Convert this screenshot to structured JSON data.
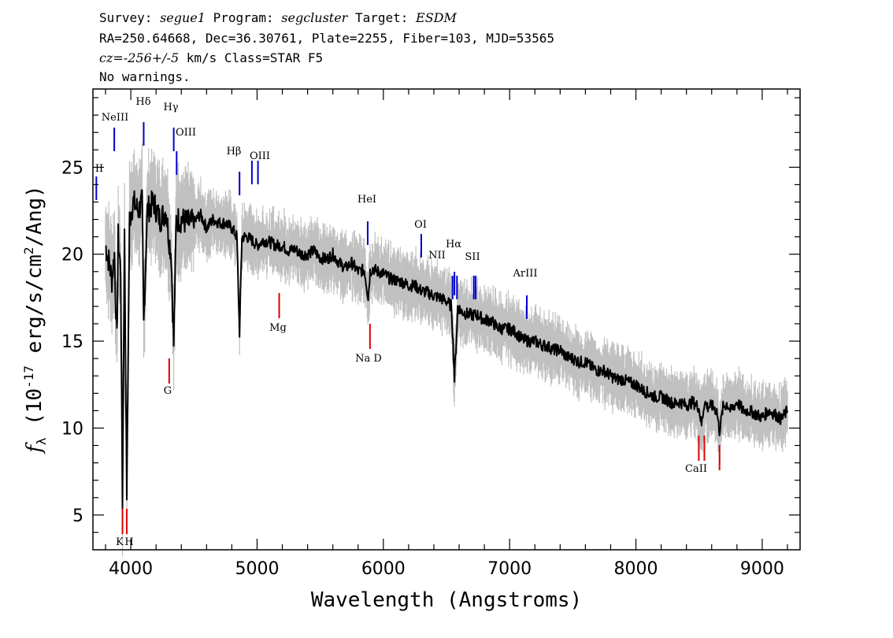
{
  "header": {
    "line1": [
      {
        "t": "Survey: ",
        "i": false
      },
      {
        "t": "segue1",
        "i": true
      },
      {
        "t": " Program: ",
        "i": false
      },
      {
        "t": "segcluster",
        "i": true
      },
      {
        "t": " Target: ",
        "i": false
      },
      {
        "t": "ESDM",
        "i": true
      }
    ],
    "line2": "RA=250.64668, Dec=36.30761, Plate=2255, Fiber=103, MJD=53565",
    "line3": [
      {
        "t": "cz=-256+/-5",
        "i": true
      },
      {
        "t": " km/s Class=STAR F5",
        "i": false
      }
    ],
    "line4": "No warnings."
  },
  "chart_data": {
    "type": "line",
    "xlabel": "Wavelength (Angstroms)",
    "ylabel": "fλ (10⁻¹⁷ erg/s/cm²/Ang)",
    "xlim": [
      3700,
      9300
    ],
    "ylim": [
      3,
      29.5
    ],
    "xticks": [
      4000,
      5000,
      6000,
      7000,
      8000,
      9000
    ],
    "yticks": [
      5,
      10,
      15,
      20,
      25
    ],
    "grid": false,
    "colors": {
      "spectrum": "#000000",
      "noise": "#c0c0c0",
      "emission": "#0000cc",
      "absorption": "#dd0000"
    },
    "series": [
      {
        "name": "flux",
        "x": [
          3800,
          3830,
          3850,
          3870,
          3890,
          3900,
          3920,
          3934,
          3950,
          3968,
          3990,
          4020,
          4060,
          4090,
          4102,
          4130,
          4180,
          4230,
          4280,
          4300,
          4320,
          4340,
          4360,
          4400,
          4450,
          4500,
          4550,
          4600,
          4650,
          4700,
          4750,
          4800,
          4840,
          4861,
          4880,
          4920,
          4960,
          5000,
          5050,
          5100,
          5150,
          5200,
          5250,
          5300,
          5350,
          5400,
          5450,
          5500,
          5550,
          5600,
          5650,
          5700,
          5750,
          5800,
          5850,
          5880,
          5895,
          5920,
          5950,
          6000,
          6050,
          6100,
          6150,
          6200,
          6250,
          6300,
          6350,
          6400,
          6450,
          6500,
          6540,
          6563,
          6590,
          6620,
          6650,
          6700,
          6750,
          6800,
          6850,
          6900,
          6950,
          7000,
          7050,
          7100,
          7150,
          7200,
          7250,
          7300,
          7350,
          7400,
          7450,
          7500,
          7550,
          7600,
          7650,
          7700,
          7750,
          7800,
          7850,
          7900,
          7950,
          8000,
          8050,
          8100,
          8150,
          8200,
          8250,
          8300,
          8350,
          8400,
          8450,
          8498,
          8520,
          8542,
          8570,
          8600,
          8640,
          8662,
          8690,
          8720,
          8750,
          8800,
          8850,
          8900,
          8950,
          9000,
          9050,
          9100,
          9150,
          9200
        ],
        "y": [
          20.5,
          19.5,
          18.5,
          20,
          15,
          21,
          19,
          5.8,
          21,
          6.3,
          22,
          23,
          22.5,
          23,
          16,
          22.5,
          23,
          22,
          22.5,
          21,
          20,
          14.8,
          22,
          22,
          21.8,
          21.8,
          22.3,
          21.5,
          22,
          21.8,
          21.8,
          21.5,
          21,
          15.5,
          21,
          21,
          20.8,
          20.5,
          20.8,
          20.7,
          20.5,
          20.5,
          20.2,
          20.3,
          20,
          20,
          20.2,
          19.8,
          19.7,
          20,
          19.5,
          19.2,
          19.5,
          19,
          19.1,
          17.5,
          19,
          19.2,
          19,
          18.9,
          18.6,
          18.5,
          18.4,
          18.2,
          18.2,
          17.9,
          17.8,
          17.6,
          17.5,
          17.3,
          17,
          12.8,
          17,
          16.7,
          16.6,
          16.5,
          16.5,
          16.2,
          16.2,
          15.8,
          15.7,
          15.7,
          15.5,
          15.1,
          15,
          15,
          14.8,
          14.7,
          14.5,
          14.5,
          14.1,
          14,
          13.8,
          13.8,
          13.5,
          13.3,
          13.3,
          13,
          12.8,
          12.8,
          12.6,
          12.5,
          12.2,
          12,
          11.8,
          11.8,
          11.6,
          11.4,
          11.5,
          11.3,
          11.5,
          11.2,
          10.2,
          11.5,
          11.2,
          11.3,
          11,
          9.8,
          11.2,
          11.4,
          11,
          11.5,
          11,
          11,
          10.8,
          10.6,
          11,
          10.8,
          10.5,
          11
        ]
      }
    ],
    "emission_lines": [
      {
        "label": "II",
        "x": 3727
      },
      {
        "label": "NeIII",
        "x": 3869
      },
      {
        "label": "Hδ",
        "x": 4102
      },
      {
        "label": "Hγ",
        "x": 4340
      },
      {
        "label": "OIII",
        "x": 4363
      },
      {
        "label": "Hβ",
        "x": 4861
      },
      {
        "label": "OIII",
        "x": 4959
      },
      {
        "label": "OIII",
        "x": 5007
      },
      {
        "label": "HeI",
        "x": 5876
      },
      {
        "label": "OI",
        "x": 6300
      },
      {
        "label": "NII",
        "x": 6548
      },
      {
        "label": "Hα",
        "x": 6563
      },
      {
        "label": "NII",
        "x": 6583
      },
      {
        "label": "SII",
        "x": 6716
      },
      {
        "label": "SII",
        "x": 6731
      },
      {
        "label": "ArIII",
        "x": 7136
      }
    ],
    "absorption_lines": [
      {
        "label": "K",
        "x": 3934
      },
      {
        "label": "H",
        "x": 3968
      },
      {
        "label": "G",
        "x": 4304
      },
      {
        "label": "Mg",
        "x": 5175
      },
      {
        "label": "Na D",
        "x": 5894
      },
      {
        "label": "CaII",
        "x": 8498
      },
      {
        "label": "CaII",
        "x": 8542
      },
      {
        "label": "CaII",
        "x": 8662
      }
    ]
  }
}
